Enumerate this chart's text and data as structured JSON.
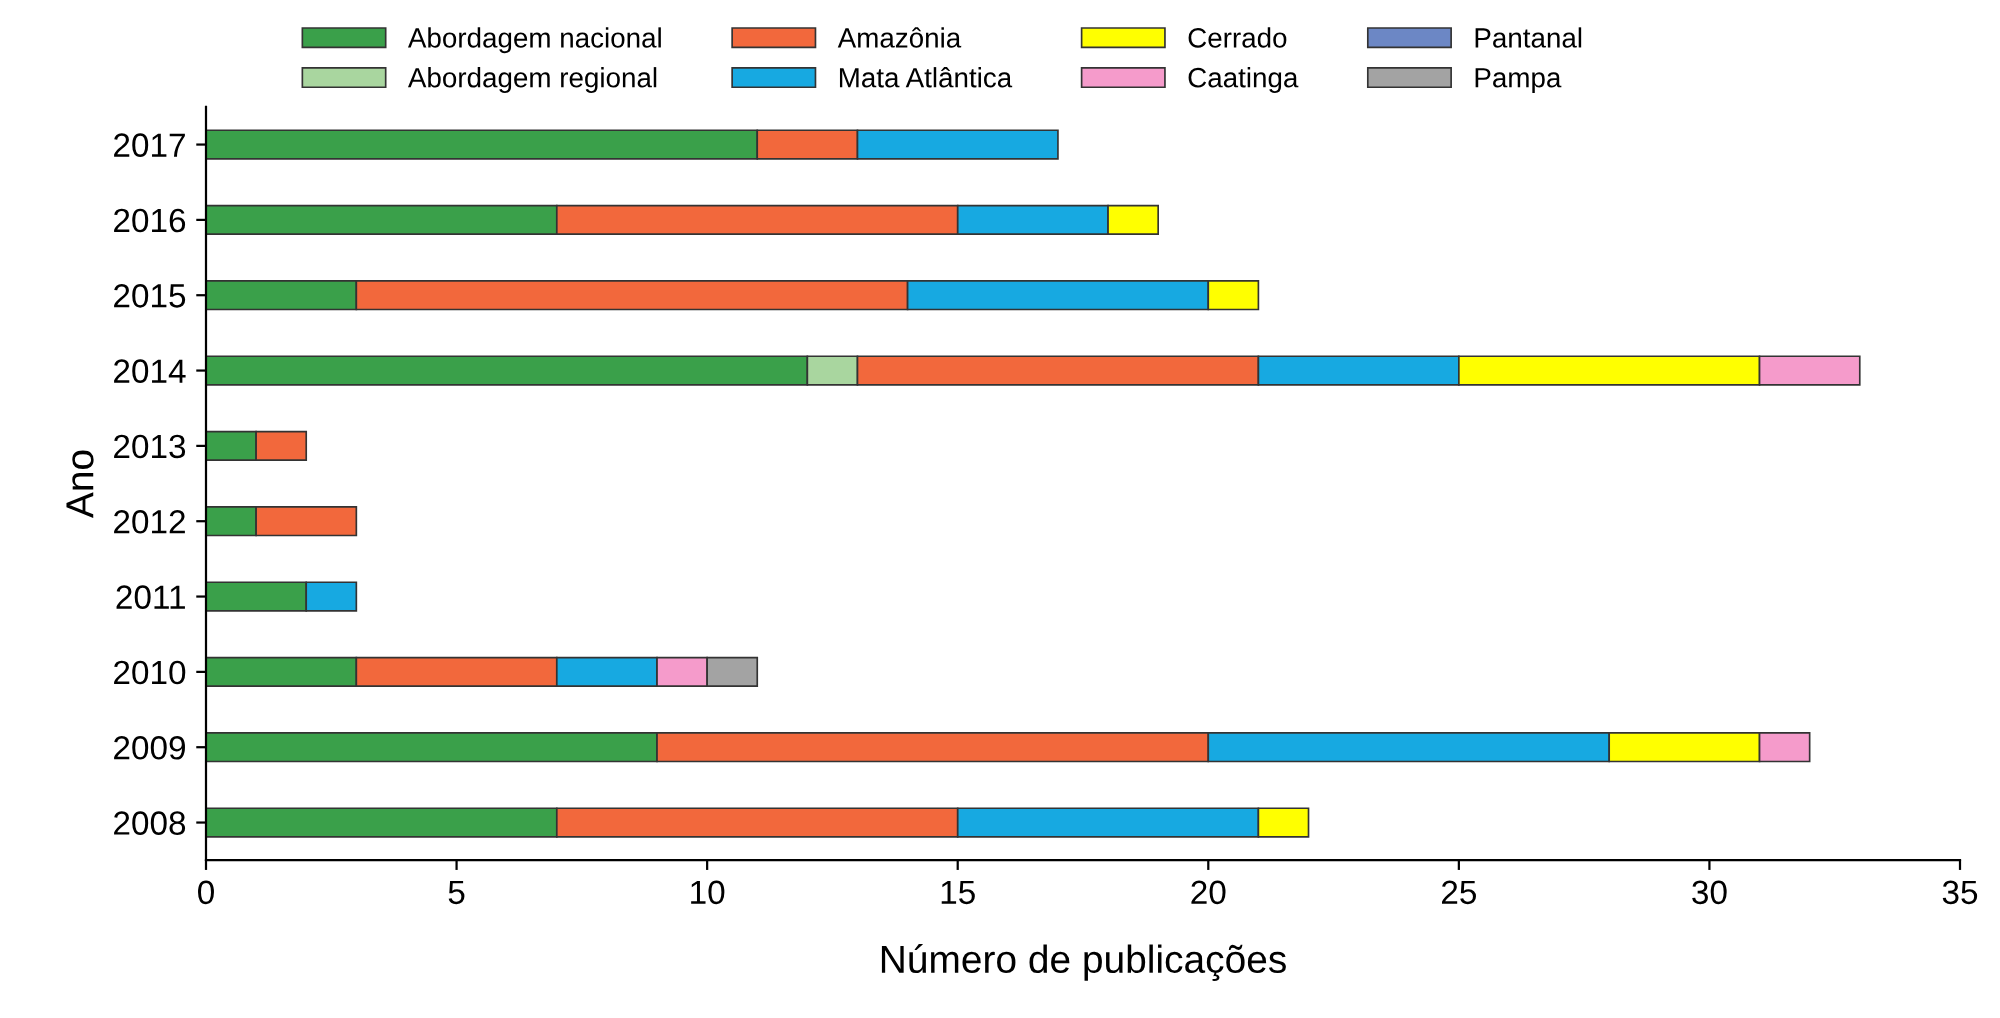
{
  "chart_data": {
    "type": "bar",
    "orientation": "horizontal",
    "stacked": true,
    "xlabel": "Número de publicações",
    "ylabel": "Ano",
    "categories": [
      "2017",
      "2016",
      "2015",
      "2014",
      "2013",
      "2012",
      "2011",
      "2010",
      "2009",
      "2008"
    ],
    "series": [
      {
        "name": "Abordagem nacional",
        "color": "#3aa04a",
        "values": [
          11,
          7,
          3,
          12,
          1,
          1,
          2,
          3,
          9,
          7
        ]
      },
      {
        "name": "Abordagem regional",
        "color": "#a9d69f",
        "values": [
          null,
          null,
          null,
          1,
          null,
          null,
          null,
          null,
          null,
          null
        ]
      },
      {
        "name": "Amazônia",
        "color": "#f2683c",
        "values": [
          2,
          8,
          11,
          8,
          1,
          2,
          null,
          4,
          11,
          8
        ]
      },
      {
        "name": "Mata Atlântica",
        "color": "#17a9e1",
        "values": [
          4,
          3,
          6,
          4,
          null,
          null,
          1,
          2,
          8,
          6
        ]
      },
      {
        "name": "Cerrado",
        "color": "#ffff00",
        "values": [
          null,
          1,
          1,
          6,
          null,
          null,
          null,
          null,
          3,
          1
        ]
      },
      {
        "name": "Caatinga",
        "color": "#f59bcb",
        "values": [
          null,
          null,
          null,
          2,
          null,
          null,
          null,
          1,
          1,
          null
        ]
      },
      {
        "name": "Pantanal",
        "color": "#6c87c5",
        "values": [
          null,
          null,
          null,
          null,
          null,
          null,
          null,
          null,
          null,
          null
        ]
      },
      {
        "name": "Pampa",
        "color": "#a3a3a3",
        "values": [
          null,
          null,
          null,
          null,
          null,
          null,
          null,
          1,
          null,
          null
        ]
      }
    ],
    "xlim": [
      0,
      35
    ],
    "xticks": [
      0,
      5,
      10,
      15,
      20,
      25,
      30,
      35
    ],
    "grid": false,
    "legend": "top"
  }
}
